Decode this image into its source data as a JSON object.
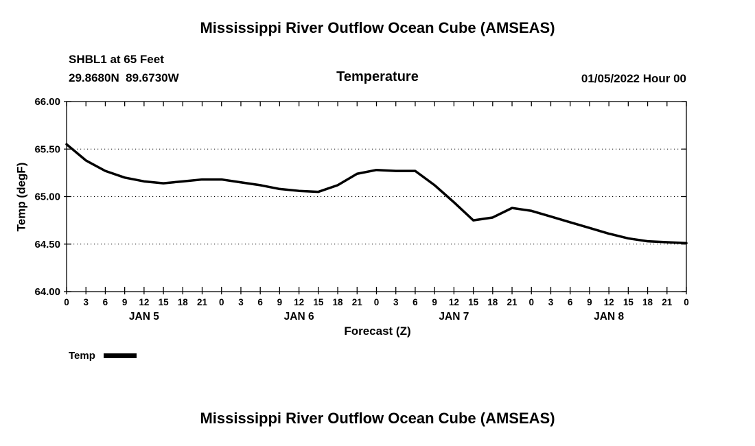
{
  "header": {
    "title": "Mississippi River Outflow Ocean Cube (AMSEAS)",
    "station": "SHBL1 at 65 Feet",
    "coordinates": "29.8680N  89.6730W",
    "datetime": "01/05/2022 Hour 00"
  },
  "footer": {
    "title": "Mississippi River Outflow Ocean Cube (AMSEAS)"
  },
  "legend": {
    "label": "Temp",
    "line_color": "#000000"
  },
  "chart_data": {
    "type": "line",
    "title": "Temperature",
    "xlabel": "Forecast (Z)",
    "ylabel": "Temp (degF)",
    "xlim": [
      0,
      96
    ],
    "ylim": [
      64.0,
      66.0
    ],
    "grid": "horizontal-dotted",
    "legend_position": "below-left",
    "yticks": {
      "values": [
        64.0,
        64.5,
        65.0,
        65.5,
        66.0
      ],
      "labels": [
        "64.00",
        "64.50",
        "65.00",
        "65.50",
        "66.00"
      ]
    },
    "xticks": {
      "hours": [
        0,
        3,
        6,
        9,
        12,
        15,
        18,
        21,
        24,
        27,
        30,
        33,
        36,
        39,
        42,
        45,
        48,
        51,
        54,
        57,
        60,
        63,
        66,
        69,
        72,
        75,
        78,
        81,
        84,
        87,
        90,
        93,
        96
      ],
      "labels": [
        "0",
        "3",
        "6",
        "9",
        "12",
        "15",
        "18",
        "21",
        "0",
        "3",
        "6",
        "9",
        "12",
        "15",
        "18",
        "21",
        "0",
        "3",
        "6",
        "9",
        "12",
        "15",
        "18",
        "21",
        "0",
        "3",
        "6",
        "9",
        "12",
        "15",
        "18",
        "21",
        "0"
      ]
    },
    "day_labels": [
      {
        "label": "JAN 5",
        "center_hour": 12
      },
      {
        "label": "JAN 6",
        "center_hour": 36
      },
      {
        "label": "JAN 7",
        "center_hour": 60
      },
      {
        "label": "JAN 8",
        "center_hour": 84
      }
    ],
    "series": [
      {
        "name": "Temp",
        "color": "#000000",
        "x": [
          0,
          3,
          6,
          9,
          12,
          15,
          18,
          21,
          24,
          27,
          30,
          33,
          36,
          39,
          42,
          45,
          48,
          51,
          54,
          57,
          60,
          63,
          66,
          69,
          72,
          75,
          78,
          81,
          84,
          87,
          90,
          93,
          96
        ],
        "values": [
          65.55,
          65.38,
          65.27,
          65.2,
          65.16,
          65.14,
          65.16,
          65.18,
          65.18,
          65.15,
          65.12,
          65.08,
          65.06,
          65.05,
          65.12,
          65.24,
          65.28,
          65.27,
          65.27,
          65.12,
          64.94,
          64.75,
          64.78,
          64.88,
          64.85,
          64.79,
          64.73,
          64.67,
          64.61,
          64.56,
          64.53,
          64.52,
          64.51
        ]
      }
    ]
  }
}
